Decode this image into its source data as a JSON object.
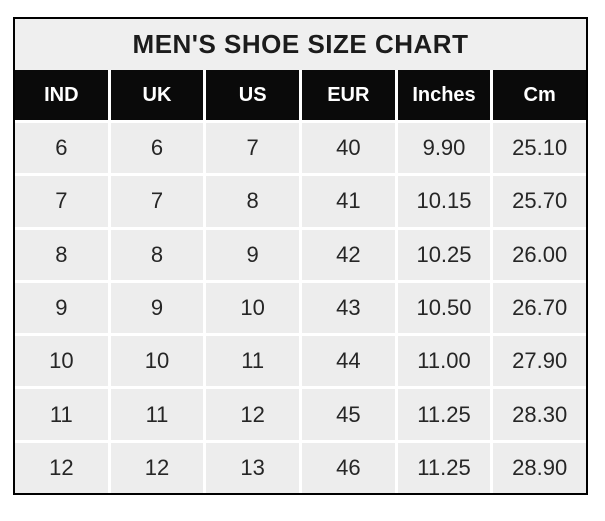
{
  "title": "MEN'S SHOE SIZE CHART",
  "colors": {
    "cell_bg": "#ededed",
    "title_bg": "#efefef",
    "header_bg": "#0a0a0a",
    "header_text": "#ffffff",
    "text": "#262626",
    "border": "#000000",
    "gridline": "#ffffff"
  },
  "chart_data": {
    "type": "table",
    "title": "MEN'S SHOE SIZE CHART",
    "columns": [
      "IND",
      "UK",
      "US",
      "EUR",
      "Inches",
      "Cm"
    ],
    "rows": [
      [
        "6",
        "6",
        "7",
        "40",
        "9.90",
        "25.10"
      ],
      [
        "7",
        "7",
        "8",
        "41",
        "10.15",
        "25.70"
      ],
      [
        "8",
        "8",
        "9",
        "42",
        "10.25",
        "26.00"
      ],
      [
        "9",
        "9",
        "10",
        "43",
        "10.50",
        "26.70"
      ],
      [
        "10",
        "10",
        "11",
        "44",
        "11.00",
        "27.90"
      ],
      [
        "11",
        "11",
        "12",
        "45",
        "11.25",
        "28.30"
      ],
      [
        "12",
        "12",
        "13",
        "46",
        "11.25",
        "28.90"
      ]
    ],
    "layout_hints": {
      "header_style": "black-background-white-text",
      "body_style": "light-gray-cells-white-gridlines",
      "outer_border": "black-2px",
      "columns_equal_width": true
    }
  }
}
